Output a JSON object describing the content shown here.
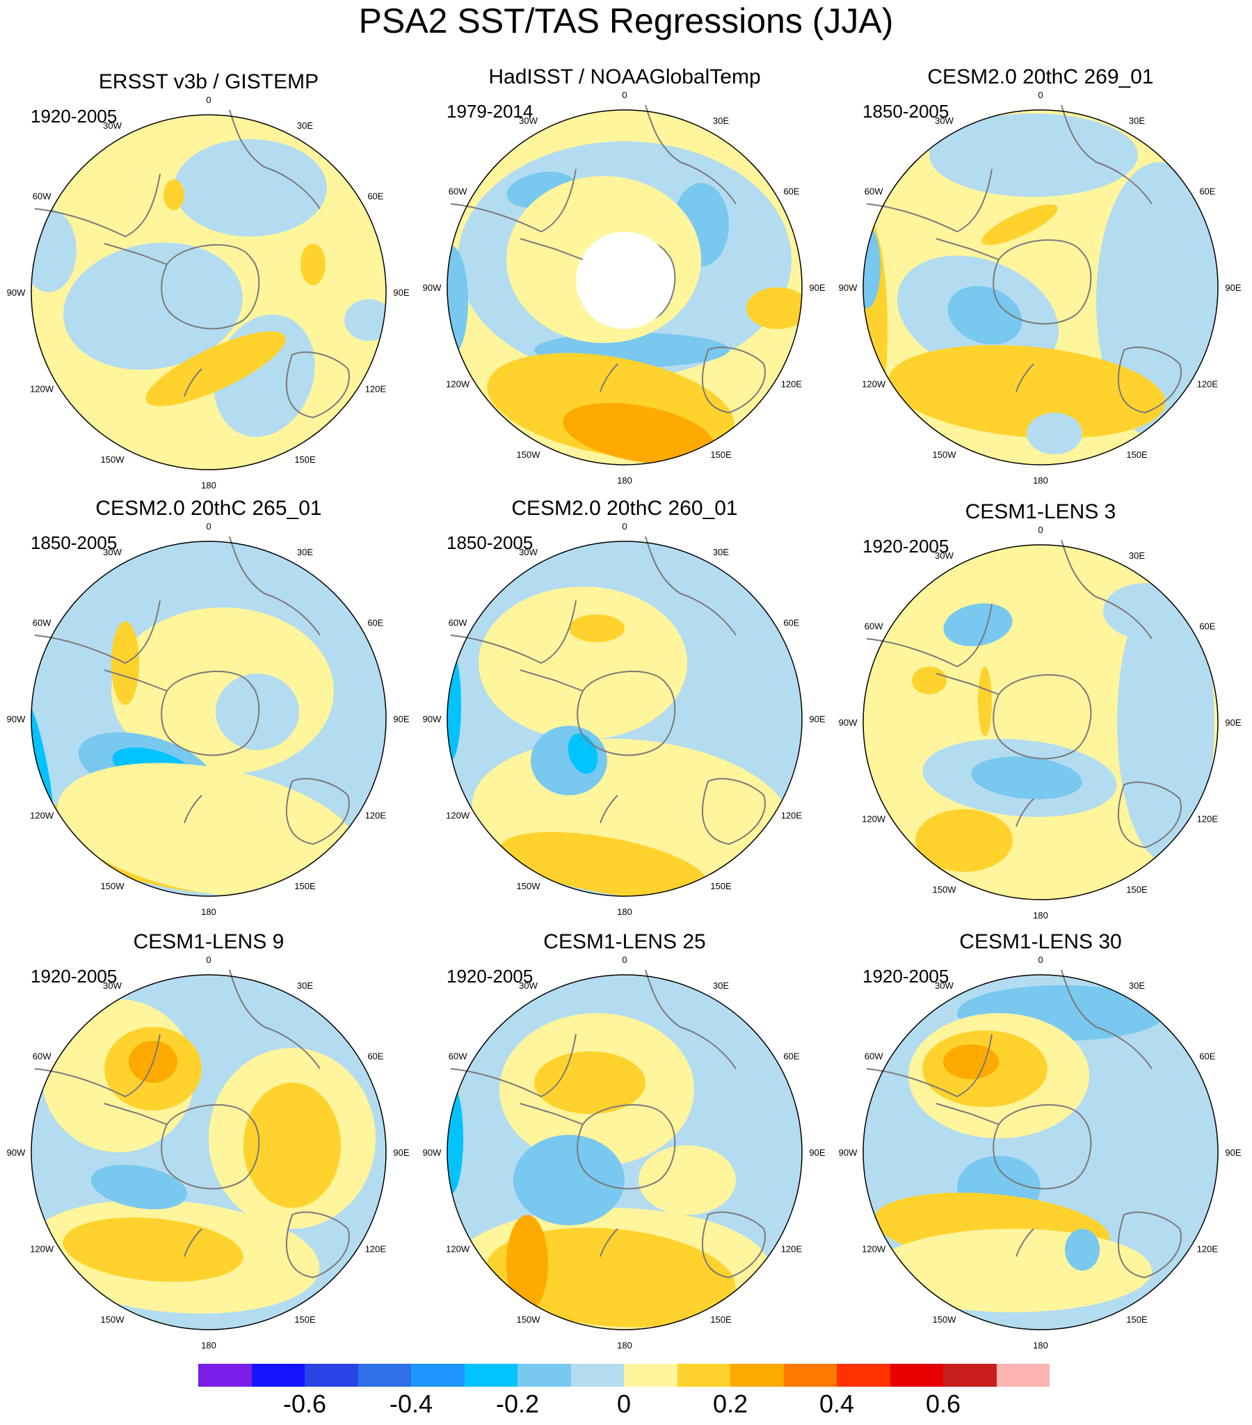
{
  "title": "PSA2 SST/TAS Regressions (JJA)",
  "longitude_labels": [
    "0",
    "30E",
    "60E",
    "90E",
    "120E",
    "150E",
    "180",
    "150W",
    "120W",
    "90W",
    "60W",
    "30W"
  ],
  "panels": [
    {
      "title": "ERSST v3b / GISTEMP",
      "years": "1920-2005",
      "missing_pole": false
    },
    {
      "title": "HadISST / NOAAGlobalTemp",
      "years": "1979-2014",
      "missing_pole": true
    },
    {
      "title": "CESM2.0 20thC 269_01",
      "years": "1850-2005",
      "missing_pole": false
    },
    {
      "title": "CESM2.0 20thC 265_01",
      "years": "1850-2005",
      "missing_pole": false
    },
    {
      "title": "CESM2.0 20thC 260_01",
      "years": "1850-2005",
      "missing_pole": false
    },
    {
      "title": "CESM1-LENS 3",
      "years": "1920-2005",
      "missing_pole": false
    },
    {
      "title": "CESM1-LENS 9",
      "years": "1920-2005",
      "missing_pole": false
    },
    {
      "title": "CESM1-LENS 25",
      "years": "1920-2005",
      "missing_pole": false
    },
    {
      "title": "CESM1-LENS 30",
      "years": "1920-2005",
      "missing_pole": false
    }
  ],
  "colorbar": {
    "colors": [
      "#7a1fe8",
      "#1414ff",
      "#2a44e6",
      "#2f6fe8",
      "#1e96ff",
      "#00c3ff",
      "#78c8f0",
      "#b4dcf0",
      "#fff59c",
      "#ffd22d",
      "#ffaa00",
      "#ff7800",
      "#ff3200",
      "#e60000",
      "#c81e1e",
      "#ffb4b4"
    ],
    "labels": [
      "-0.6",
      "-0.4",
      "-0.2",
      "0",
      "0.2",
      "0.4",
      "0.6"
    ],
    "label_boundary_index": [
      2,
      4,
      6,
      8,
      10,
      12,
      14
    ]
  },
  "palette": {
    "light_blue": "#b4dcf0",
    "mid_blue": "#78c8f0",
    "cyan": "#00c3ff",
    "light_yellow": "#fff59c",
    "yellow": "#ffd22d",
    "orange": "#ffaa00",
    "land_outline": "#7a7a7a",
    "missing": "#ffffff"
  }
}
